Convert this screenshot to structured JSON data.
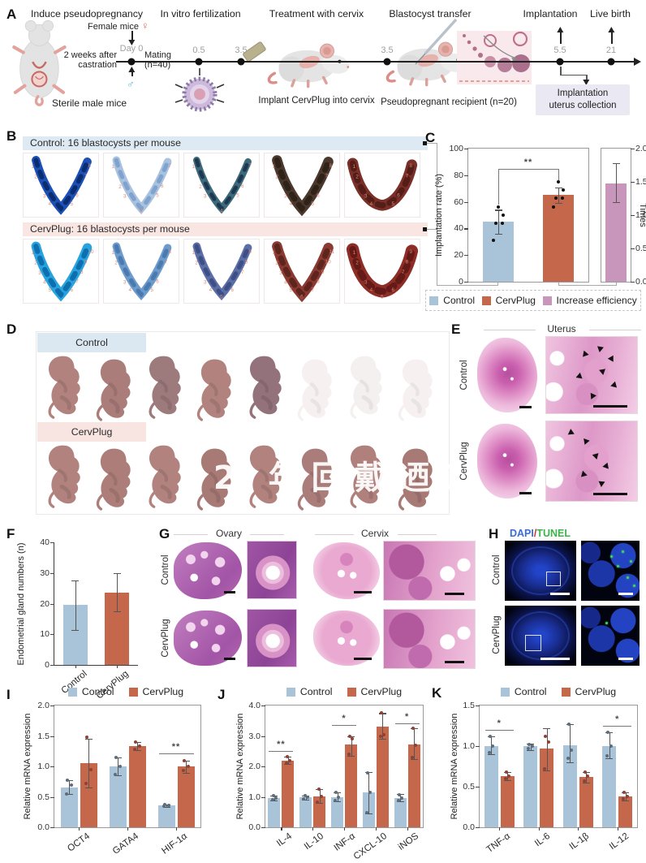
{
  "colors": {
    "control": "#a9c4d9",
    "cervplug": "#c4674b",
    "efficiency": "#c796ba",
    "dapi_blue": "#3a6bd8",
    "tunel_green": "#3cb54a",
    "header_blue": "#ddeaf3",
    "header_pink": "#f9e6e3",
    "site_number_red": "#d98a7a"
  },
  "panelA": {
    "label": "A",
    "stage_titles": [
      "Induce pseudopregnancy",
      "In vitro fertilization",
      "Treatment with cervix",
      "Blastocyst transfer",
      "Implantation",
      "Live birth"
    ],
    "female_label": "Female mice",
    "female_symbol": "♀",
    "male_symbol": "♂",
    "day0_label": "Day 0",
    "mating_line1": "Mating",
    "mating_line2": "(n=40)",
    "castration_line1": "2 weeks after",
    "castration_line2": "castration",
    "sterile_label": "Sterile male mice",
    "timepoints": [
      "0.5",
      "3.5",
      "3.5",
      "5.5",
      "21"
    ],
    "implant_caption": "Implant CervPlug into cervix",
    "recipient_caption": "Pseudopregnant recipient (n=20)",
    "collection_line1": "Implantation",
    "collection_line2": "uterus collection"
  },
  "panelB": {
    "label": "B",
    "control_header": "Control: 16 blastocysts per mouse",
    "cervplug_header": "CervPlug: 16 blastocysts per mouse",
    "rows": [
      {
        "name": "control",
        "tiles": [
          {
            "c1": "#1d50b4",
            "c2": "#0a2d72",
            "w": 11,
            "n": 8,
            "shape": "v"
          },
          {
            "c1": "#a9c2e0",
            "c2": "#7fa3cc",
            "w": 10,
            "n": 7,
            "shape": "v"
          },
          {
            "c1": "#3c6a7a",
            "c2": "#1d3850",
            "w": 9,
            "n": 7,
            "shape": "v"
          },
          {
            "c1": "#4a382c",
            "c2": "#2f2218",
            "w": 13,
            "n": 8,
            "shape": "v"
          },
          {
            "c1": "#7a3028",
            "c2": "#551d18",
            "w": 14,
            "n": 8,
            "shape": "u"
          }
        ]
      },
      {
        "name": "cervplug",
        "tiles": [
          {
            "c1": "#29a3dd",
            "c2": "#0d6fb0",
            "w": 12,
            "n": 10,
            "shape": "v"
          },
          {
            "c1": "#6d9bcb",
            "c2": "#4a7ab0",
            "w": 10,
            "n": 8,
            "shape": "v"
          },
          {
            "c1": "#5c6ea6",
            "c2": "#3d4f85",
            "w": 10,
            "n": 9,
            "shape": "v"
          },
          {
            "c1": "#8a3a30",
            "c2": "#5e241e",
            "w": 13,
            "n": 11,
            "shape": "v"
          },
          {
            "c1": "#8e2d26",
            "c2": "#641a16",
            "w": 16,
            "n": 9,
            "shape": "u"
          }
        ]
      }
    ]
  },
  "panelC": {
    "label": "C",
    "legend": [
      {
        "label": "Control"
      },
      {
        "label": "CervPlug"
      },
      {
        "label": "Increase efficiency"
      }
    ]
  },
  "panelD": {
    "label": "D",
    "control_label": "Control",
    "cervplug_label": "CervPlug",
    "watermark": "02 年回戴迺设社三",
    "rows": [
      {
        "pups": [
          {
            "color": "#b2837e",
            "faded": false
          },
          {
            "color": "#ab7d7a",
            "faded": false
          },
          {
            "color": "#9d7a7c",
            "faded": false
          },
          {
            "color": "#b2837e",
            "faded": false
          },
          {
            "color": "#93727b",
            "faded": false
          },
          {
            "color": "#efe7e5",
            "faded": true
          },
          {
            "color": "#ece4e2",
            "faded": true
          },
          {
            "color": "#efe7e5",
            "faded": true
          }
        ]
      },
      {
        "pups": [
          {
            "color": "#b2837e",
            "faded": false
          },
          {
            "color": "#ad7e79",
            "faded": false
          },
          {
            "color": "#b2837e",
            "faded": false
          },
          {
            "color": "#a87a76",
            "faded": false
          },
          {
            "color": "#b2837e",
            "faded": false
          },
          {
            "color": "#ab7d7a",
            "faded": false
          },
          {
            "color": "#b0817c",
            "faded": false
          },
          {
            "color": "#a87a76",
            "faded": false
          }
        ]
      }
    ]
  },
  "panelE": {
    "label": "E",
    "title": "Uterus",
    "row_labels": [
      "Control",
      "CervPlug"
    ]
  },
  "panelF": {
    "label": "F"
  },
  "panelG": {
    "label": "G",
    "col_titles": [
      "Ovary",
      "Cervix"
    ],
    "row_labels": [
      "Control",
      "CervPlug"
    ]
  },
  "panelH": {
    "label": "H",
    "title_dapi": "DAPI",
    "title_sep": "/",
    "title_tunel": "TUNEL",
    "row_labels": [
      "Control",
      "CervPlug"
    ]
  },
  "panelI": {
    "label": "I"
  },
  "panelJ": {
    "label": "J"
  },
  "panelK": {
    "label": "K"
  },
  "chart_data": [
    {
      "id": "implantation-rate",
      "type": "bar",
      "ylabel": "Implantation rate (%)",
      "ylim": [
        0,
        100
      ],
      "yticks": [
        0,
        20,
        40,
        60,
        80,
        100
      ],
      "ytick_labels": [
        "0",
        "20",
        "40",
        "60",
        "80",
        "100"
      ],
      "barw": 38,
      "show_xlabels": false,
      "point_color": "#111111",
      "bars": [
        {
          "label": "Control",
          "value": 45,
          "color": "#a9c4d9",
          "err": [
            36,
            54
          ],
          "points": [
            31,
            44,
            44,
            50,
            56
          ]
        },
        {
          "label": "CervPlug",
          "value": 65,
          "color": "#c4674b",
          "err": [
            59,
            71
          ],
          "points": [
            56,
            63,
            63,
            69,
            75
          ]
        }
      ],
      "sig": [
        {
          "from": 0,
          "to": 1,
          "label": "**",
          "y": 85,
          "legs": [
            44,
            14
          ]
        }
      ],
      "legend_position": "bottom"
    },
    {
      "id": "increase-efficiency",
      "type": "bar",
      "ylabel": "Times",
      "axis": "right",
      "ylim": [
        0,
        2
      ],
      "yticks": [
        0,
        0.5,
        1,
        1.5,
        2
      ],
      "ytick_labels": [
        "0.0",
        "0.5",
        "1.0",
        "1.5",
        "2.0"
      ],
      "barw": 26,
      "show_xlabels": false,
      "bars": [
        {
          "label": "Increase efficiency",
          "value": 1.48,
          "color": "#c796ba",
          "err": [
            1.2,
            1.78
          ]
        }
      ]
    },
    {
      "id": "endometrial-gland-numbers",
      "type": "bar",
      "ylabel": "Endometrial gland numbers (n)",
      "ylim": [
        0,
        40
      ],
      "yticks": [
        0,
        10,
        20,
        30,
        40
      ],
      "ytick_labels": [
        "0",
        "10",
        "20",
        "30",
        "40"
      ],
      "barw": 30,
      "show_xlabels": true,
      "xlabel_rotate": -40,
      "box": "axes",
      "bars": [
        {
          "label": "Control",
          "value": 19.5,
          "color": "#a9c4d9",
          "err": [
            11.5,
            27.5
          ]
        },
        {
          "label": "CervPlug",
          "value": 23.5,
          "color": "#c4674b",
          "err": [
            17.5,
            30
          ]
        }
      ]
    },
    {
      "id": "mrna-stemness",
      "type": "bar",
      "grouped": true,
      "ylabel": "Relative mRNA expression",
      "ylim": [
        0,
        2
      ],
      "yticks": [
        0,
        0.5,
        1,
        1.5,
        2
      ],
      "ytick_labels": [
        "0.0",
        "0.5",
        "1.0",
        "1.5",
        "2.0"
      ],
      "barw": 21,
      "bargap": 3,
      "show_xlabels": true,
      "xlabel_rotate": -36,
      "categories": [
        "OCT4",
        "GATA4",
        "HIF-1α"
      ],
      "series": [
        {
          "name": "Control",
          "color": "#a9c4d9",
          "point_color": "#5d6d7c",
          "values": [
            0.65,
            1.0,
            0.36
          ],
          "err_lo": [
            0.55,
            0.86,
            0.34
          ],
          "err_hi": [
            0.77,
            1.15,
            0.38
          ],
          "points": [
            [
              0.55,
              0.7,
              0.77
            ],
            [
              0.87,
              1.0,
              1.15
            ],
            [
              0.35,
              0.36,
              0.37
            ]
          ]
        },
        {
          "name": "CervPlug",
          "color": "#c4674b",
          "point_color": "#8f4134",
          "values": [
            1.05,
            1.33,
            1.0
          ],
          "err_lo": [
            0.65,
            1.27,
            0.9
          ],
          "err_hi": [
            1.45,
            1.4,
            1.1
          ],
          "points": [
            [
              0.72,
              0.95,
              1.48
            ],
            [
              1.28,
              1.33,
              1.4
            ],
            [
              0.93,
              1.0,
              1.1
            ]
          ]
        }
      ],
      "sig": [
        {
          "cat": 2,
          "label": "**",
          "y": 1.22
        }
      ]
    },
    {
      "id": "mrna-m1-markers",
      "type": "bar",
      "grouped": true,
      "ylabel": "Relative mRNA expression",
      "ylim": [
        0,
        4
      ],
      "yticks": [
        0,
        1,
        2,
        3,
        4
      ],
      "ytick_labels": [
        "0.0",
        "1.0",
        "2.0",
        "3.0",
        "4.0"
      ],
      "barw": 15,
      "bargap": 2,
      "show_xlabels": true,
      "xlabel_rotate": -36,
      "categories": [
        "IL-4",
        "IL-10",
        "INF-α",
        "CXCL-10",
        "iNOS"
      ],
      "series": [
        {
          "name": "Control",
          "color": "#a9c4d9",
          "point_color": "#5d6d7c",
          "values": [
            0.97,
            0.98,
            1.0,
            1.15,
            0.97
          ],
          "err_lo": [
            0.88,
            0.92,
            0.85,
            0.45,
            0.85
          ],
          "err_hi": [
            1.05,
            1.05,
            1.15,
            1.82,
            1.1
          ],
          "points": [
            [
              0.9,
              0.97,
              1.05
            ],
            [
              0.93,
              0.98,
              1.04
            ],
            [
              0.87,
              1.0,
              1.15
            ],
            [
              0.47,
              1.15,
              1.8
            ],
            [
              0.88,
              0.97,
              1.08
            ]
          ]
        },
        {
          "name": "CervPlug",
          "color": "#c4674b",
          "point_color": "#8f4134",
          "values": [
            2.2,
            1.02,
            2.72,
            3.3,
            2.72
          ],
          "err_lo": [
            2.08,
            0.8,
            2.35,
            2.9,
            2.25
          ],
          "err_hi": [
            2.32,
            1.25,
            3.0,
            3.75,
            3.25
          ],
          "points": [
            [
              2.1,
              2.2,
              2.32
            ],
            [
              0.82,
              1.02,
              1.25
            ],
            [
              2.4,
              2.9,
              3.0
            ],
            [
              3.0,
              3.05,
              3.75
            ],
            [
              2.3,
              2.7,
              3.25
            ]
          ]
        }
      ],
      "sig": [
        {
          "cat": 0,
          "label": "**",
          "y": 2.5
        },
        {
          "cat": 2,
          "label": "*",
          "y": 3.35
        },
        {
          "cat": 4,
          "label": "*",
          "y": 3.42
        }
      ]
    },
    {
      "id": "mrna-inflammatory",
      "type": "bar",
      "grouped": true,
      "ylabel": "Relative mRNA expression",
      "ylim": [
        0,
        1.5
      ],
      "yticks": [
        0,
        0.5,
        1,
        1.5
      ],
      "ytick_labels": [
        "0.0",
        "0.5",
        "1.0",
        "1.5"
      ],
      "barw": 17,
      "bargap": 3,
      "show_xlabels": true,
      "xlabel_rotate": -36,
      "categories": [
        "TNF-α",
        "IL-6",
        "IL-1β",
        "IL-12"
      ],
      "series": [
        {
          "name": "Control",
          "color": "#a9c4d9",
          "point_color": "#5d6d7c",
          "values": [
            1.0,
            1.0,
            1.01,
            1.0
          ],
          "err_lo": [
            0.9,
            0.95,
            0.8,
            0.85
          ],
          "err_hi": [
            1.12,
            1.03,
            1.27,
            1.17
          ],
          "points": [
            [
              0.92,
              1.0,
              1.12
            ],
            [
              0.97,
              1.0,
              1.02
            ],
            [
              0.85,
              0.95,
              1.27
            ],
            [
              0.88,
              1.0,
              1.17
            ]
          ]
        },
        {
          "name": "CervPlug",
          "color": "#c4674b",
          "point_color": "#8f4134",
          "values": [
            0.63,
            0.97,
            0.62,
            0.38
          ],
          "err_lo": [
            0.58,
            0.7,
            0.55,
            0.33
          ],
          "err_hi": [
            0.68,
            1.22,
            0.68,
            0.43
          ],
          "points": [
            [
              0.6,
              0.63,
              0.68
            ],
            [
              0.72,
              1.05,
              1.12
            ],
            [
              0.57,
              0.63,
              0.68
            ],
            [
              0.35,
              0.38,
              0.43
            ]
          ]
        }
      ],
      "sig": [
        {
          "cat": 0,
          "label": "*",
          "y": 1.2
        },
        {
          "cat": 3,
          "label": "*",
          "y": 1.25
        }
      ]
    }
  ]
}
